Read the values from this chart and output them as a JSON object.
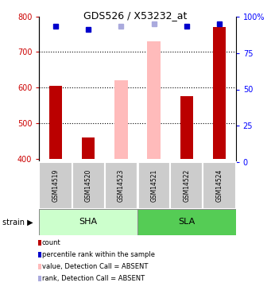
{
  "title": "GDS526 / X53232_at",
  "samples": [
    "GSM14519",
    "GSM14520",
    "GSM14523",
    "GSM14521",
    "GSM14522",
    "GSM14524"
  ],
  "ylim_left": [
    390,
    800
  ],
  "ylim_right": [
    0,
    100
  ],
  "yticks_left": [
    400,
    500,
    600,
    700,
    800
  ],
  "yticks_right": [
    0,
    25,
    50,
    75,
    100
  ],
  "bar_values": [
    605,
    460,
    620,
    730,
    575,
    770
  ],
  "bar_absent": [
    false,
    false,
    true,
    true,
    false,
    false
  ],
  "bar_color_present": "#bb0000",
  "bar_color_absent": "#ffbbbb",
  "rank_values": [
    93,
    91,
    93,
    95,
    93,
    95
  ],
  "rank_absent": [
    false,
    false,
    true,
    true,
    false,
    false
  ],
  "rank_color_present": "#0000cc",
  "rank_color_absent": "#aaaadd",
  "sha_color": "#ccffcc",
  "sla_color": "#55cc55",
  "sample_bg_color": "#cccccc",
  "legend_items": [
    {
      "label": "count",
      "color": "#bb0000"
    },
    {
      "label": "percentile rank within the sample",
      "color": "#0000cc"
    },
    {
      "label": "value, Detection Call = ABSENT",
      "color": "#ffbbbb"
    },
    {
      "label": "rank, Detection Call = ABSENT",
      "color": "#aaaadd"
    }
  ],
  "dotted_lines": [
    500,
    600,
    700
  ],
  "baseline": 400
}
